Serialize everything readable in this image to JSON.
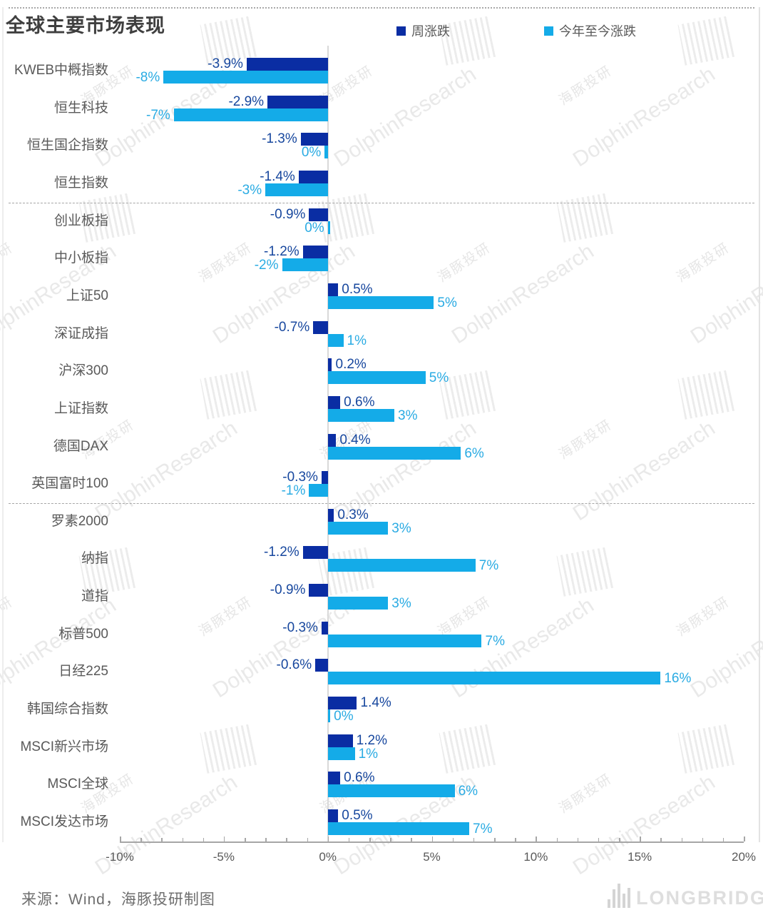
{
  "page": {
    "title": "全球主要市场表现",
    "source_note": "来源：Wind，海豚投研制图",
    "brand": "LONGBRIDGE",
    "watermark": {
      "text_en": "DolphinResearch",
      "text_zh": "海豚投研"
    }
  },
  "chart_data": {
    "type": "bar",
    "orientation": "horizontal",
    "title": "全球主要市场表现",
    "series_names": [
      "周涨跌",
      "今年至今涨跌"
    ],
    "colors": {
      "week_bar": "#0a2da3",
      "ytd_bar": "#14abe8",
      "week_label": "#17479e",
      "ytd_label": "#2aabe3"
    },
    "x_axis": {
      "min": -10,
      "max": 20,
      "minor_step": 1,
      "major_step": 5,
      "tick_labels": [
        "-10%",
        "-5%",
        "0%",
        "5%",
        "10%",
        "15%",
        "20%"
      ]
    },
    "grid": false,
    "legend_position": "top",
    "rows": [
      {
        "category": "KWEB中概指数",
        "week": -3.9,
        "week_label": "-3.9%",
        "ytd": -8,
        "ytd_label": "-8%",
        "ytd_bar": -7.9
      },
      {
        "category": "恒生科技",
        "week": -2.9,
        "week_label": "-2.9%",
        "ytd": -7,
        "ytd_label": "-7%",
        "ytd_bar": -7.4
      },
      {
        "category": "恒生国企指数",
        "week": -1.3,
        "week_label": "-1.3%",
        "ytd": 0,
        "ytd_label": "0%",
        "ytd_bar": -0.15
      },
      {
        "category": "恒生指数",
        "week": -1.4,
        "week_label": "-1.4%",
        "ytd": -3,
        "ytd_label": "-3%",
        "ytd_bar": -3.0
      },
      {
        "category": "创业板指",
        "week": -0.9,
        "week_label": "-0.9%",
        "ytd": 0,
        "ytd_label": "0%",
        "ytd_bar": 0.1,
        "ytd_label_side": "left"
      },
      {
        "category": "中小板指",
        "week": -1.2,
        "week_label": "-1.2%",
        "ytd": -2,
        "ytd_label": "-2%",
        "ytd_bar": -2.2
      },
      {
        "category": "上证50",
        "week": 0.5,
        "week_label": "0.5%",
        "ytd": 5,
        "ytd_label": "5%",
        "ytd_bar": 5.1
      },
      {
        "category": "深证成指",
        "week": -0.7,
        "week_label": "-0.7%",
        "ytd": 1,
        "ytd_label": "1%",
        "ytd_bar": 0.75
      },
      {
        "category": "沪深300",
        "week": 0.2,
        "week_label": "0.2%",
        "ytd": 5,
        "ytd_label": "5%",
        "ytd_bar": 4.7
      },
      {
        "category": "上证指数",
        "week": 0.6,
        "week_label": "0.6%",
        "ytd": 3,
        "ytd_label": "3%",
        "ytd_bar": 3.2
      },
      {
        "category": "德国DAX",
        "week": 0.4,
        "week_label": "0.4%",
        "ytd": 6,
        "ytd_label": "6%",
        "ytd_bar": 6.4
      },
      {
        "category": "英国富时100",
        "week": -0.3,
        "week_label": "-0.3%",
        "ytd": -1,
        "ytd_label": "-1%",
        "ytd_bar": -0.9
      },
      {
        "category": "罗素2000",
        "week": 0.3,
        "week_label": "0.3%",
        "ytd": 3,
        "ytd_label": "3%",
        "ytd_bar": 2.9
      },
      {
        "category": "纳指",
        "week": -1.2,
        "week_label": "-1.2%",
        "ytd": 7,
        "ytd_label": "7%",
        "ytd_bar": 7.1
      },
      {
        "category": "道指",
        "week": -0.9,
        "week_label": "-0.9%",
        "ytd": 3,
        "ytd_label": "3%",
        "ytd_bar": 2.9
      },
      {
        "category": "标普500",
        "week": -0.3,
        "week_label": "-0.3%",
        "ytd": 7,
        "ytd_label": "7%",
        "ytd_bar": 7.4
      },
      {
        "category": "日经225",
        "week": -0.6,
        "week_label": "-0.6%",
        "ytd": 16,
        "ytd_label": "16%",
        "ytd_bar": 16.0
      },
      {
        "category": "韩国综合指数",
        "week": 1.4,
        "week_label": "1.4%",
        "ytd": 0,
        "ytd_label": "0%",
        "ytd_bar": 0.12
      },
      {
        "category": "MSCI新兴市场",
        "week": 1.2,
        "week_label": "1.2%",
        "ytd": 1,
        "ytd_label": "1%",
        "ytd_bar": 1.3
      },
      {
        "category": "MSCI全球",
        "week": 0.6,
        "week_label": "0.6%",
        "ytd": 6,
        "ytd_label": "6%",
        "ytd_bar": 6.1
      },
      {
        "category": "MSCI发达市场",
        "week": 0.5,
        "week_label": "0.5%",
        "ytd": 7,
        "ytd_label": "7%",
        "ytd_bar": 6.8
      }
    ],
    "group_separators_after": [
      "恒生指数",
      "英国富时100"
    ]
  }
}
